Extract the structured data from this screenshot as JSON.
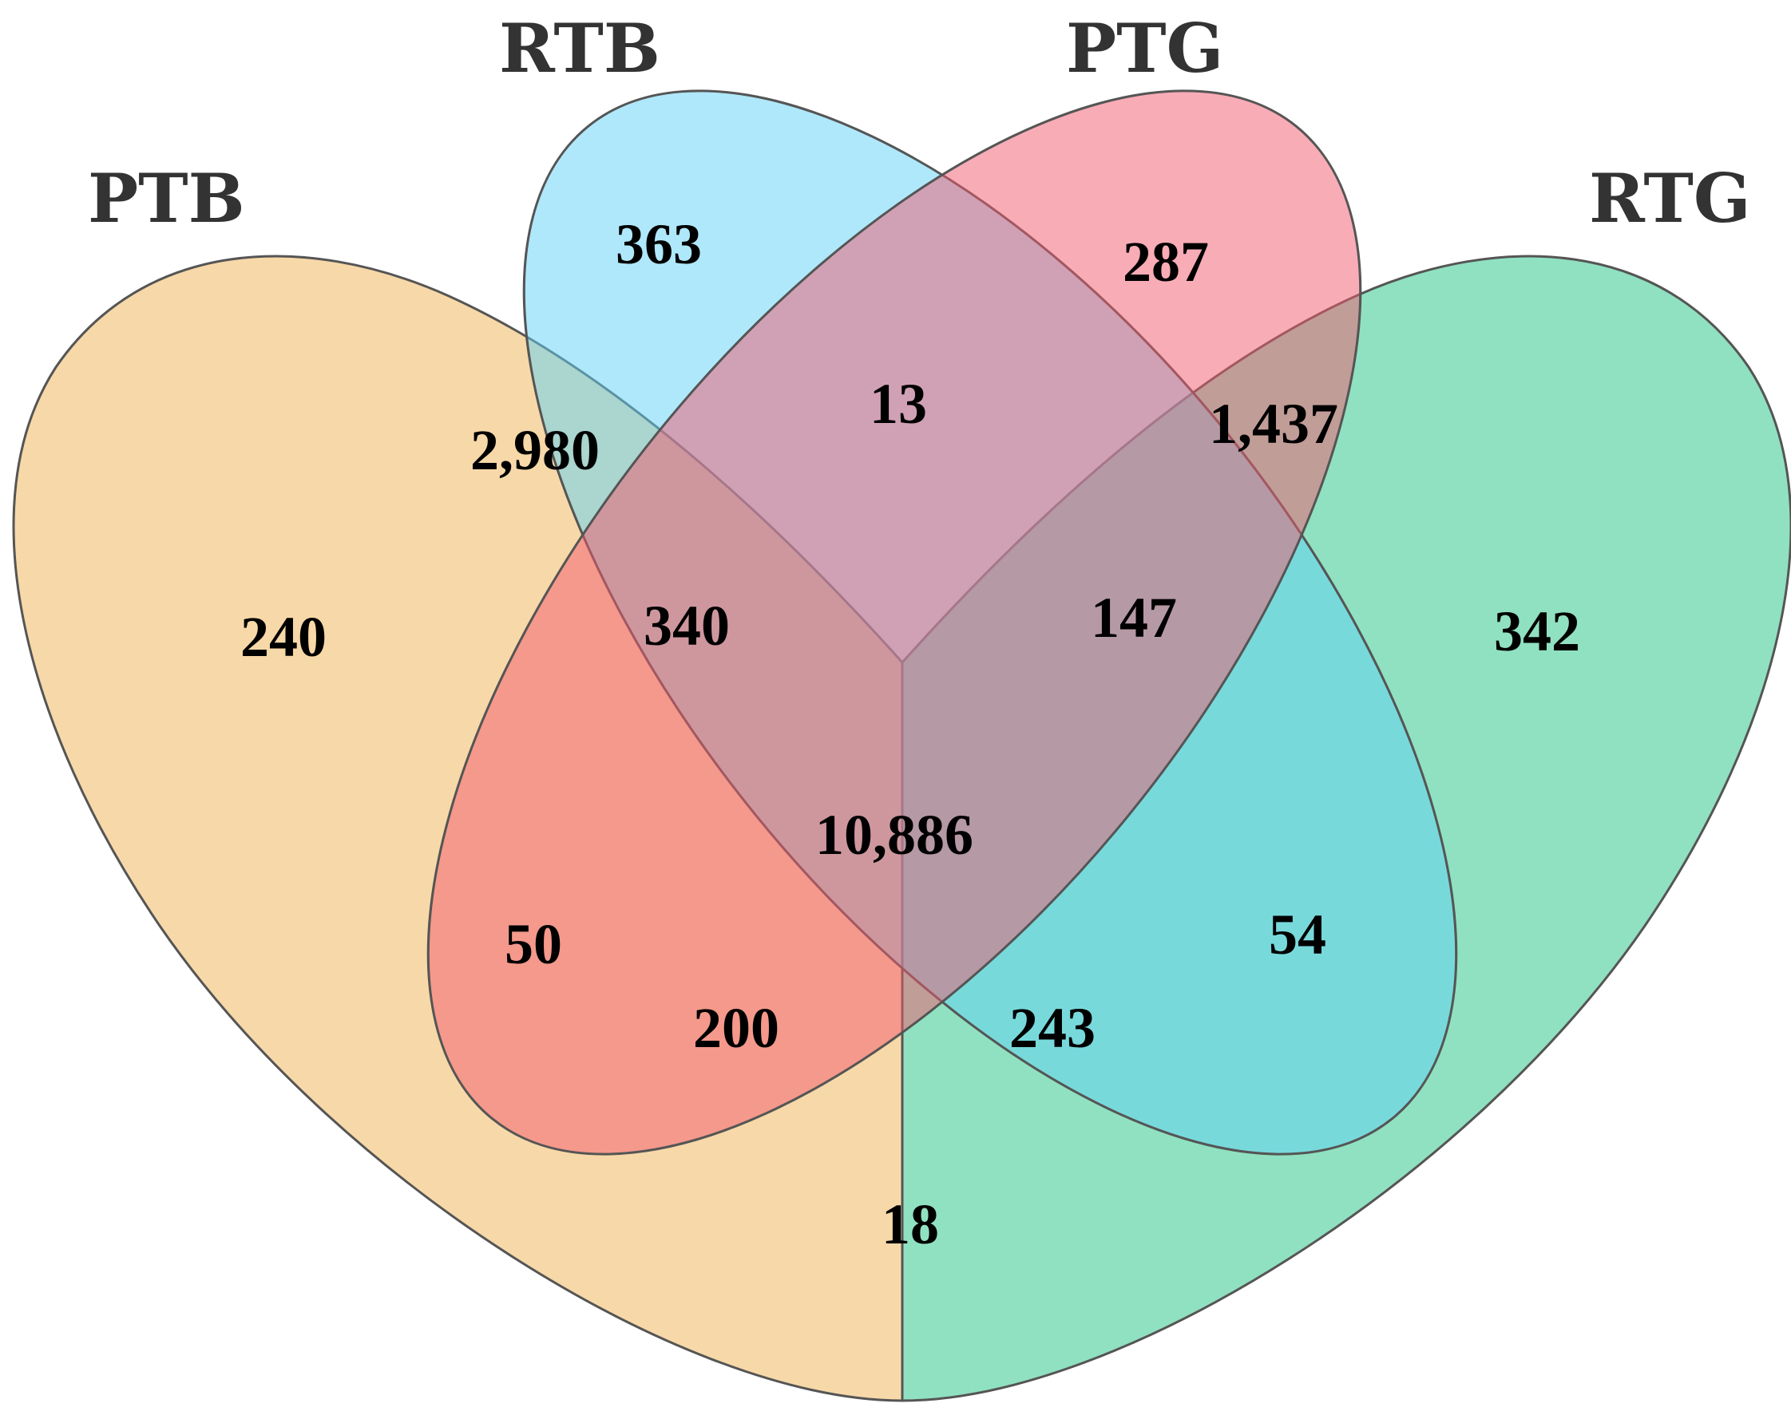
{
  "sets": [
    {
      "id": "PTB",
      "label": "PTB",
      "color": "#F0B860"
    },
    {
      "id": "RTB",
      "label": "RTB",
      "color": "#5FD2F5"
    },
    {
      "id": "PTG",
      "label": "PTG",
      "color": "#F25A6E"
    },
    {
      "id": "RTG",
      "label": "RTG",
      "color": "#34C98E"
    }
  ],
  "regions": {
    "PTB_only": "240",
    "RTB_only": "363",
    "PTG_only": "287",
    "RTG_only": "342",
    "PTB_RTB": "2,980",
    "RTB_PTG": "13",
    "PTG_RTG": "1,437",
    "PTB_PTG": "50",
    "RTB_RTG": "54",
    "PTB_RTG": "18",
    "PTB_RTB_PTG": "340",
    "RTB_PTG_RTG": "147",
    "PTB_PTG_RTG": "200",
    "PTB_RTB_RTG": "243",
    "PTB_RTB_PTG_RTG": "10,886"
  }
}
